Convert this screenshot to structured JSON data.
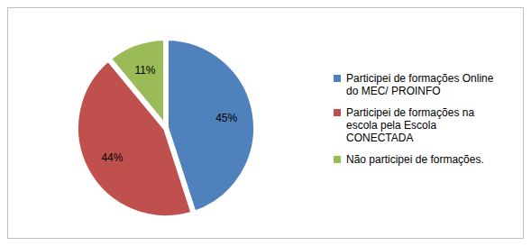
{
  "chart_data": {
    "type": "pie",
    "categories": [
      "Participei de formações Online do MEC/ PROINFO",
      "Participei de formações na escola pela Escola CONECTADA",
      "Não participei de formações."
    ],
    "values": [
      45,
      44,
      11
    ],
    "value_labels": [
      "45%",
      "44%",
      "11%"
    ],
    "colors": [
      "#4f81bd",
      "#c0504d",
      "#9bbb59"
    ],
    "data_labels": true,
    "legend": "right"
  }
}
